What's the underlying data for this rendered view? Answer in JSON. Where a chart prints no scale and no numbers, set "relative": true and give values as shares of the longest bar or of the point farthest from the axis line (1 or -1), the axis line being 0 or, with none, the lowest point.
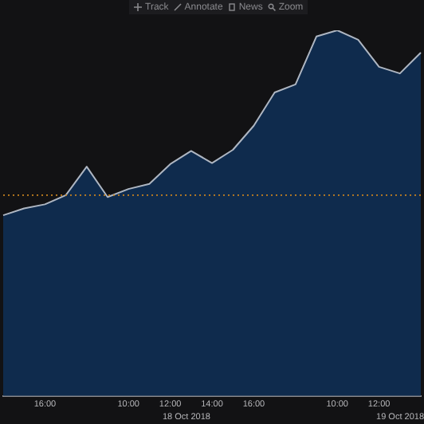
{
  "chart_data": {
    "type": "area",
    "relative": true,
    "color": "#0f2b4d",
    "categories": [
      null,
      null,
      "16:00",
      null,
      null,
      null,
      "10:00",
      null,
      "12:00",
      null,
      "14:00",
      null,
      "16:00",
      null,
      null,
      null,
      "10:00",
      null,
      "12:00",
      null,
      null
    ],
    "values": [
      0.494,
      0.513,
      0.524,
      0.549,
      0.627,
      0.544,
      0.566,
      0.58,
      0.634,
      0.67,
      0.637,
      0.673,
      0.739,
      0.83,
      0.852,
      0.983,
      1,
      0.974,
      0.9,
      0.882,
      0.939
    ],
    "ref_lines": [
      {
        "axis": "y",
        "value": 0.549,
        "color": "#c8821e",
        "line_style": "dotted"
      }
    ],
    "annotations": [
      "Track",
      "Annotate",
      "News",
      "Zoom",
      "18 Oct 2018",
      "19 Oct 2018"
    ],
    "grid": false,
    "legend": false,
    "marker": "none"
  }
}
